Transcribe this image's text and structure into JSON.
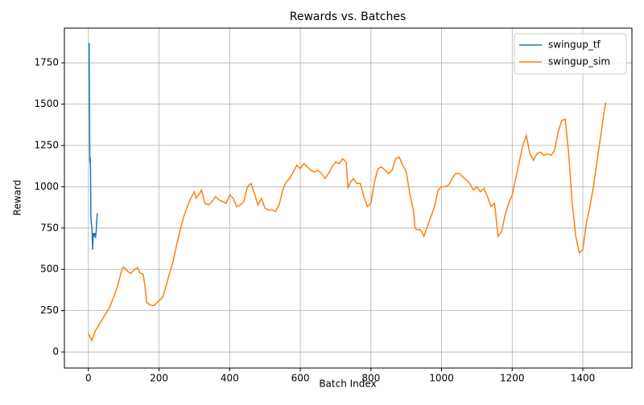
{
  "chart_data": {
    "type": "line",
    "title": "Rewards vs. Batches",
    "x_label": "Batch Index",
    "y_label": "Reward",
    "xlim": [
      -68,
      1539
    ],
    "ylim": [
      -97,
      1960
    ],
    "xticks": [
      0,
      200,
      400,
      600,
      800,
      1000,
      1200,
      1400
    ],
    "yticks": [
      0,
      250,
      500,
      750,
      1000,
      1250,
      1500,
      1750
    ],
    "grid": true,
    "legend": "upper right",
    "series": [
      {
        "name": "swingup_tf",
        "color": "#1f77b4",
        "x": [
          2,
          3,
          4,
          5,
          6,
          7,
          8,
          10,
          12,
          14,
          16,
          18,
          20,
          22,
          25
        ],
        "values": [
          1870,
          1500,
          1150,
          1180,
          1100,
          820,
          780,
          750,
          620,
          720,
          700,
          720,
          690,
          730,
          840
        ]
      },
      {
        "name": "swingup_sim",
        "color": "#ff7f0e",
        "x": [
          0,
          5,
          10,
          20,
          40,
          60,
          80,
          95,
          100,
          110,
          120,
          130,
          140,
          145,
          155,
          160,
          165,
          175,
          185,
          200,
          210,
          220,
          230,
          240,
          250,
          260,
          270,
          280,
          290,
          300,
          305,
          315,
          320,
          330,
          340,
          350,
          360,
          370,
          380,
          390,
          400,
          410,
          420,
          430,
          440,
          450,
          460,
          470,
          480,
          490,
          500,
          510,
          520,
          530,
          540,
          550,
          560,
          570,
          580,
          590,
          600,
          610,
          620,
          630,
          640,
          650,
          660,
          670,
          680,
          690,
          700,
          710,
          720,
          730,
          735,
          740,
          750,
          760,
          770,
          780,
          790,
          800,
          810,
          820,
          830,
          840,
          850,
          860,
          870,
          880,
          890,
          900,
          910,
          920,
          925,
          930,
          940,
          950,
          960,
          970,
          980,
          990,
          1000,
          1010,
          1020,
          1030,
          1040,
          1050,
          1060,
          1070,
          1080,
          1090,
          1100,
          1110,
          1120,
          1130,
          1140,
          1150,
          1160,
          1170,
          1180,
          1190,
          1200,
          1210,
          1220,
          1230,
          1240,
          1250,
          1260,
          1270,
          1280,
          1290,
          1300,
          1310,
          1320,
          1330,
          1340,
          1350,
          1360,
          1370,
          1380,
          1390,
          1400,
          1410,
          1420,
          1430,
          1440,
          1450,
          1460,
          1465
        ],
        "values": [
          110,
          90,
          70,
          130,
          200,
          270,
          380,
          500,
          515,
          490,
          475,
          500,
          510,
          480,
          470,
          400,
          300,
          285,
          280,
          310,
          330,
          400,
          480,
          550,
          650,
          740,
          820,
          880,
          930,
          970,
          930,
          960,
          980,
          900,
          890,
          910,
          940,
          920,
          910,
          900,
          950,
          930,
          880,
          890,
          910,
          1000,
          1020,
          960,
          890,
          930,
          870,
          860,
          860,
          850,
          890,
          980,
          1030,
          1050,
          1090,
          1130,
          1110,
          1140,
          1120,
          1100,
          1090,
          1100,
          1080,
          1050,
          1080,
          1120,
          1150,
          1140,
          1170,
          1150,
          990,
          1020,
          1050,
          1020,
          1020,
          940,
          880,
          900,
          1030,
          1110,
          1120,
          1100,
          1080,
          1100,
          1170,
          1180,
          1130,
          1090,
          960,
          860,
          750,
          740,
          740,
          700,
          760,
          820,
          880,
          980,
          1000,
          1000,
          1010,
          1050,
          1080,
          1080,
          1060,
          1040,
          1020,
          980,
          1000,
          970,
          990,
          940,
          880,
          900,
          700,
          730,
          830,
          900,
          950,
          1050,
          1150,
          1250,
          1310,
          1200,
          1160,
          1200,
          1210,
          1190,
          1200,
          1190,
          1220,
          1330,
          1400,
          1410,
          1200,
          900,
          700,
          600,
          620,
          780,
          880,
          1000,
          1150,
          1300,
          1450,
          1510
        ]
      }
    ]
  }
}
